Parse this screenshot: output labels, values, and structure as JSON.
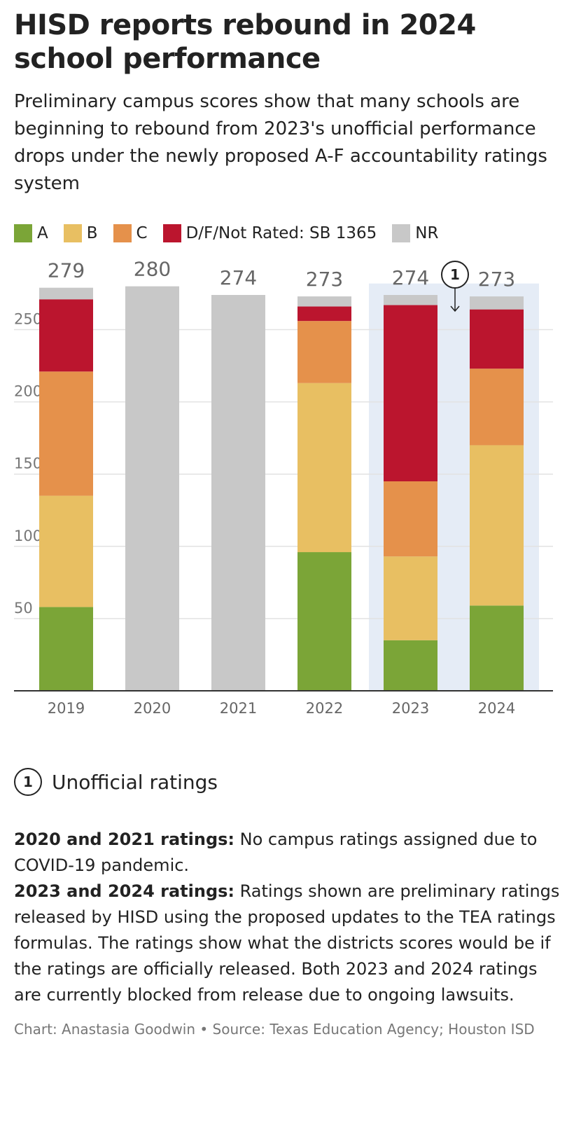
{
  "title": "HISD reports rebound in 2024 school performance",
  "subtitle": "Preliminary campus scores show that many schools are beginning to rebound from 2023's unofficial performance drops under the newly proposed A-F accountability ratings system",
  "legend": [
    {
      "label": "A",
      "color": "#7ba537"
    },
    {
      "label": "B",
      "color": "#e8bf62"
    },
    {
      "label": "C",
      "color": "#e5914b"
    },
    {
      "label": "D/F/Not Rated: SB 1365",
      "color": "#bb152e"
    },
    {
      "label": "NR",
      "color": "#c8c8c8"
    }
  ],
  "chart_data": {
    "type": "bar",
    "stacked": true,
    "categories": [
      "2019",
      "2020",
      "2021",
      "2022",
      "2023",
      "2024"
    ],
    "series": [
      {
        "name": "A",
        "color": "#7ba537",
        "values": [
          58,
          0,
          0,
          96,
          35,
          59
        ]
      },
      {
        "name": "B",
        "color": "#e8bf62",
        "values": [
          77,
          0,
          0,
          117,
          58,
          111
        ]
      },
      {
        "name": "C",
        "color": "#e5914b",
        "values": [
          86,
          0,
          0,
          43,
          52,
          53
        ]
      },
      {
        "name": "D/F/Not Rated: SB 1365",
        "color": "#bb152e",
        "values": [
          50,
          0,
          0,
          10,
          122,
          41
        ]
      },
      {
        "name": "NR",
        "color": "#c8c8c8",
        "values": [
          8,
          280,
          274,
          7,
          7,
          9
        ]
      }
    ],
    "totals": [
      279,
      280,
      274,
      273,
      274,
      273
    ],
    "yticks": [
      50,
      100,
      150,
      200,
      250
    ],
    "ylim": [
      0,
      280
    ],
    "grid": true,
    "highlight": {
      "categories": [
        "2023",
        "2024"
      ],
      "color": "#e5ecf6"
    },
    "annotation": {
      "number": "1",
      "category": "2023"
    }
  },
  "notes": {
    "annotation_label": "Unofficial ratings",
    "note1_bold": "2020 and 2021 ratings:",
    "note1_text": " No campus ratings assigned due to COVID-19 pandemic.",
    "note2_bold": "2023 and 2024 ratings:",
    "note2_text": " Ratings shown are preliminary ratings released by HISD using the proposed updates to the TEA ratings formulas. The ratings show what the districts scores would be if the ratings are officially released. Both 2023 and 2024 ratings are currently blocked from release due to ongoing lawsuits."
  },
  "credit": "Chart: Anastasia Goodwin • Source: Texas Education Agency; Houston ISD"
}
